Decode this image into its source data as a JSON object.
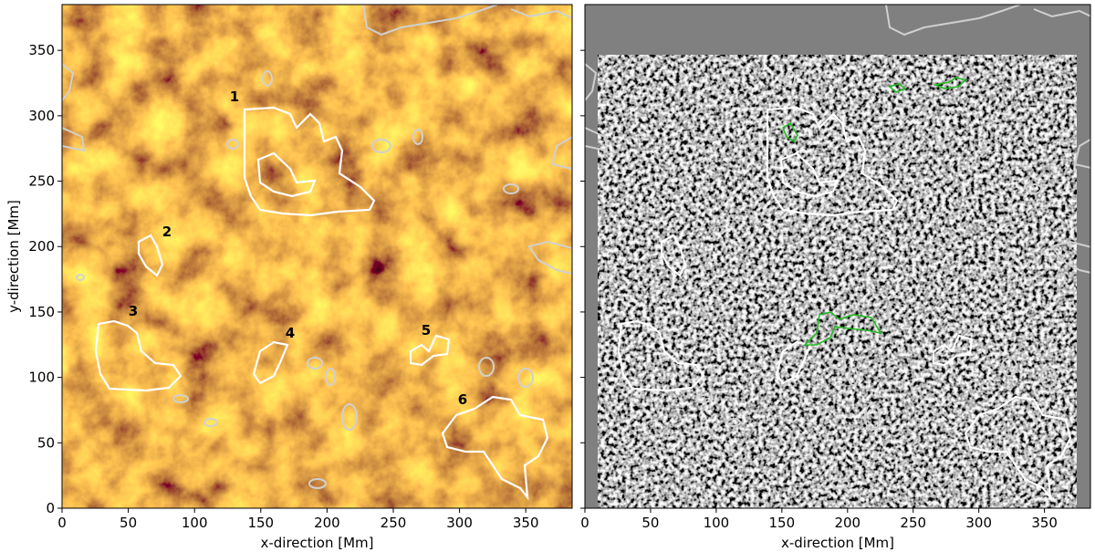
{
  "chart_data": [
    {
      "type": "image",
      "xlabel": "x-direction [Mm]",
      "ylabel": "y-direction [Mm]",
      "xlim": [
        0,
        385
      ],
      "ylim": [
        0,
        385
      ],
      "xticks": [
        0,
        50,
        100,
        150,
        200,
        250,
        300,
        350
      ],
      "yticks": [
        0,
        50,
        100,
        150,
        200,
        250,
        300,
        350
      ],
      "show_ytick_labels": true,
      "annotations": [
        "1",
        "2",
        "3",
        "4",
        "5",
        "6"
      ]
    },
    {
      "type": "image",
      "xlabel": "x-direction [Mm]",
      "xlim": [
        0,
        385
      ],
      "ylim": [
        0,
        385
      ],
      "xticks": [
        0,
        50,
        100,
        150,
        200,
        250,
        300,
        350
      ],
      "yticks": [
        0,
        50,
        100,
        150,
        200,
        250,
        300,
        350
      ],
      "show_ytick_labels": false
    }
  ]
}
